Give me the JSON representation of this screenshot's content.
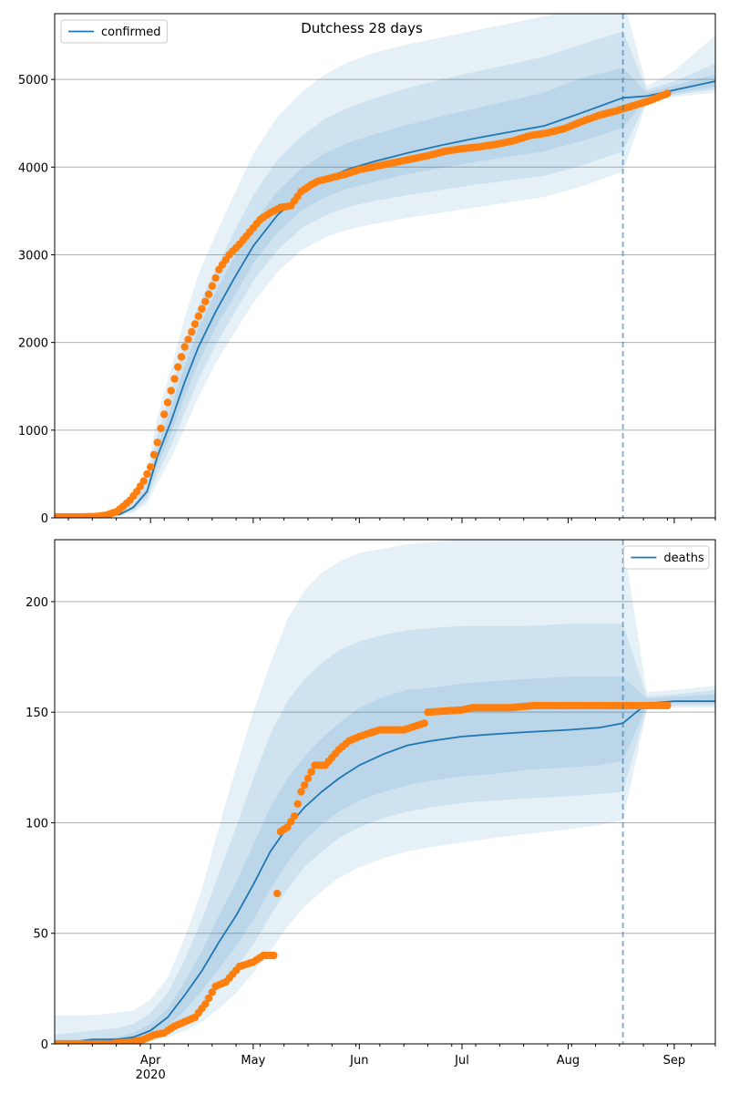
{
  "figure_title": "Dutchess 28 days",
  "colors": {
    "model": "#1f77b4",
    "observed": "#ff7f0e",
    "grid": "#b0b0b0",
    "axis": "#000000"
  },
  "chart_data": [
    {
      "type": "line",
      "name": "confirmed-panel",
      "legend": {
        "label": "confirmed",
        "placement": "top-left"
      },
      "x_type": "date",
      "xlim": [
        "2020-03-04",
        "2020-09-13"
      ],
      "ylim": [
        0,
        5750
      ],
      "yticks": [
        0,
        1000,
        2000,
        3000,
        4000,
        5000
      ],
      "forecast_start": "2020-08-17",
      "model": {
        "dates": [
          "2020-03-04",
          "2020-03-11",
          "2020-03-18",
          "2020-03-23",
          "2020-03-27",
          "2020-03-31",
          "2020-04-03",
          "2020-04-07",
          "2020-04-11",
          "2020-04-15",
          "2020-04-20",
          "2020-04-25",
          "2020-05-01",
          "2020-05-08",
          "2020-05-15",
          "2020-05-22",
          "2020-05-29",
          "2020-06-05",
          "2020-06-15",
          "2020-06-25",
          "2020-07-05",
          "2020-07-15",
          "2020-07-25",
          "2020-08-05",
          "2020-08-17",
          "2020-08-24",
          "2020-09-01",
          "2020-09-13"
        ],
        "median": [
          10,
          12,
          15,
          40,
          120,
          300,
          700,
          1100,
          1550,
          1950,
          2350,
          2700,
          3100,
          3450,
          3700,
          3870,
          3980,
          4060,
          4160,
          4250,
          4330,
          4400,
          4470,
          4620,
          4790,
          4810,
          4880,
          4980
        ],
        "band_50": [
          [
            10,
            10
          ],
          [
            12,
            12
          ],
          [
            15,
            15
          ],
          [
            35,
            45
          ],
          [
            100,
            140
          ],
          [
            260,
            340
          ],
          [
            600,
            800
          ],
          [
            960,
            1250
          ],
          [
            1380,
            1730
          ],
          [
            1770,
            2160
          ],
          [
            2170,
            2570
          ],
          [
            2500,
            2940
          ],
          [
            2900,
            3360
          ],
          [
            3250,
            3720
          ],
          [
            3500,
            3980
          ],
          [
            3660,
            4160
          ],
          [
            3760,
            4280
          ],
          [
            3830,
            4370
          ],
          [
            3920,
            4480
          ],
          [
            3990,
            4580
          ],
          [
            4060,
            4670
          ],
          [
            4120,
            4760
          ],
          [
            4180,
            4850
          ],
          [
            4300,
            5020
          ],
          [
            4450,
            5130
          ],
          [
            4780,
            4850
          ],
          [
            4840,
            4930
          ],
          [
            4920,
            5060
          ]
        ],
        "band_80": [
          [
            10,
            10
          ],
          [
            12,
            12
          ],
          [
            15,
            15
          ],
          [
            30,
            55
          ],
          [
            80,
            170
          ],
          [
            210,
            410
          ],
          [
            500,
            950
          ],
          [
            820,
            1450
          ],
          [
            1200,
            1970
          ],
          [
            1580,
            2420
          ],
          [
            1970,
            2830
          ],
          [
            2300,
            3230
          ],
          [
            2700,
            3680
          ],
          [
            3050,
            4080
          ],
          [
            3300,
            4350
          ],
          [
            3450,
            4550
          ],
          [
            3550,
            4680
          ],
          [
            3610,
            4780
          ],
          [
            3680,
            4900
          ],
          [
            3740,
            5000
          ],
          [
            3800,
            5090
          ],
          [
            3850,
            5170
          ],
          [
            3900,
            5260
          ],
          [
            4020,
            5400
          ],
          [
            4180,
            5550
          ],
          [
            4760,
            4880
          ],
          [
            4820,
            4980
          ],
          [
            4890,
            5180
          ]
        ],
        "band_95": [
          [
            10,
            10
          ],
          [
            12,
            12
          ],
          [
            15,
            15
          ],
          [
            25,
            70
          ],
          [
            60,
            220
          ],
          [
            160,
            520
          ],
          [
            400,
            1150
          ],
          [
            680,
            1700
          ],
          [
            1020,
            2280
          ],
          [
            1380,
            2780
          ],
          [
            1760,
            3230
          ],
          [
            2080,
            3650
          ],
          [
            2450,
            4150
          ],
          [
            2800,
            4570
          ],
          [
            3050,
            4850
          ],
          [
            3200,
            5060
          ],
          [
            3290,
            5200
          ],
          [
            3350,
            5300
          ],
          [
            3420,
            5400
          ],
          [
            3480,
            5480
          ],
          [
            3540,
            5560
          ],
          [
            3600,
            5640
          ],
          [
            3660,
            5720
          ],
          [
            3780,
            5820
          ],
          [
            3950,
            5930
          ],
          [
            4740,
            4920
          ],
          [
            4800,
            5100
          ],
          [
            4850,
            5500
          ]
        ]
      },
      "observed": {
        "dates": [
          "2020-03-04",
          "2020-03-11",
          "2020-03-16",
          "2020-03-19",
          "2020-03-22",
          "2020-03-24",
          "2020-03-26",
          "2020-03-28",
          "2020-03-30",
          "2020-04-01",
          "2020-04-03",
          "2020-04-05",
          "2020-04-07",
          "2020-04-09",
          "2020-04-11",
          "2020-04-13",
          "2020-04-15",
          "2020-04-18",
          "2020-04-21",
          "2020-04-24",
          "2020-04-27",
          "2020-04-30",
          "2020-05-03",
          "2020-05-06",
          "2020-05-09",
          "2020-05-12",
          "2020-05-15",
          "2020-05-18",
          "2020-05-20",
          "2020-05-24",
          "2020-05-28",
          "2020-06-01",
          "2020-06-06",
          "2020-06-11",
          "2020-06-16",
          "2020-06-21",
          "2020-06-26",
          "2020-07-01",
          "2020-07-06",
          "2020-07-11",
          "2020-07-16",
          "2020-07-21",
          "2020-07-26",
          "2020-07-31",
          "2020-08-05",
          "2020-08-10",
          "2020-08-15",
          "2020-08-20",
          "2020-08-25",
          "2020-08-30"
        ],
        "values": [
          10,
          10,
          15,
          30,
          70,
          130,
          200,
          300,
          420,
          580,
          860,
          1180,
          1450,
          1720,
          1950,
          2120,
          2300,
          2550,
          2830,
          3000,
          3120,
          3260,
          3400,
          3480,
          3540,
          3560,
          3720,
          3800,
          3840,
          3880,
          3920,
          3970,
          4010,
          4050,
          4090,
          4130,
          4180,
          4210,
          4230,
          4260,
          4300,
          4360,
          4390,
          4440,
          4520,
          4590,
          4640,
          4700,
          4760,
          4840
        ]
      }
    },
    {
      "type": "line",
      "name": "deaths-panel",
      "legend": {
        "label": "deaths",
        "placement": "top-right"
      },
      "x_type": "date",
      "x_tick_labels": [
        "Apr",
        "May",
        "Jun",
        "Jul",
        "Aug",
        "Sep"
      ],
      "x_tick_dates": [
        "2020-04-01",
        "2020-05-01",
        "2020-06-01",
        "2020-07-01",
        "2020-08-01",
        "2020-09-01"
      ],
      "year_label": "2020",
      "xlim": [
        "2020-03-04",
        "2020-09-13"
      ],
      "ylim": [
        0,
        228
      ],
      "yticks": [
        0,
        50,
        100,
        150,
        200
      ],
      "forecast_start": "2020-08-17",
      "model": {
        "dates": [
          "2020-03-04",
          "2020-03-15",
          "2020-03-22",
          "2020-03-27",
          "2020-04-01",
          "2020-04-06",
          "2020-04-11",
          "2020-04-16",
          "2020-04-21",
          "2020-04-26",
          "2020-05-01",
          "2020-05-06",
          "2020-05-11",
          "2020-05-16",
          "2020-05-21",
          "2020-05-26",
          "2020-06-01",
          "2020-06-08",
          "2020-06-15",
          "2020-06-22",
          "2020-07-01",
          "2020-07-10",
          "2020-07-20",
          "2020-08-01",
          "2020-08-10",
          "2020-08-17",
          "2020-08-24",
          "2020-09-01",
          "2020-09-13"
        ],
        "median": [
          0,
          2,
          2,
          3,
          6,
          12,
          22,
          33,
          46,
          58,
          72,
          87,
          98,
          107,
          114,
          120,
          126,
          131,
          135,
          137,
          139,
          140,
          141,
          142,
          143,
          145,
          154,
          155,
          155
        ],
        "band_50": [
          [
            0,
            1
          ],
          [
            1,
            2
          ],
          [
            1,
            3
          ],
          [
            2,
            5
          ],
          [
            4,
            9
          ],
          [
            8,
            16
          ],
          [
            15,
            28
          ],
          [
            24,
            42
          ],
          [
            34,
            58
          ],
          [
            44,
            73
          ],
          [
            56,
            90
          ],
          [
            70,
            107
          ],
          [
            82,
            120
          ],
          [
            92,
            130
          ],
          [
            99,
            138
          ],
          [
            105,
            145
          ],
          [
            110,
            152
          ],
          [
            114,
            157
          ],
          [
            117,
            160
          ],
          [
            119,
            161
          ],
          [
            121,
            163
          ],
          [
            122,
            164
          ],
          [
            124,
            165
          ],
          [
            125,
            166
          ],
          [
            126,
            166
          ],
          [
            128,
            166
          ],
          [
            153,
            156
          ],
          [
            154,
            157
          ],
          [
            154,
            158
          ]
        ],
        "band_80": [
          [
            0,
            4
          ],
          [
            0,
            6
          ],
          [
            0,
            7
          ],
          [
            1,
            9
          ],
          [
            2,
            14
          ],
          [
            5,
            23
          ],
          [
            10,
            38
          ],
          [
            17,
            56
          ],
          [
            25,
            77
          ],
          [
            34,
            98
          ],
          [
            45,
            120
          ],
          [
            58,
            140
          ],
          [
            70,
            155
          ],
          [
            80,
            165
          ],
          [
            87,
            172
          ],
          [
            93,
            178
          ],
          [
            98,
            182
          ],
          [
            102,
            185
          ],
          [
            105,
            187
          ],
          [
            107,
            188
          ],
          [
            109,
            189
          ],
          [
            110,
            189
          ],
          [
            111,
            189
          ],
          [
            112,
            190
          ],
          [
            113,
            190
          ],
          [
            114,
            190
          ],
          [
            152,
            157
          ],
          [
            153,
            158
          ],
          [
            153,
            160
          ]
        ],
        "band_95": [
          [
            0,
            13
          ],
          [
            0,
            13
          ],
          [
            0,
            14
          ],
          [
            0,
            15
          ],
          [
            1,
            20
          ],
          [
            3,
            30
          ],
          [
            6,
            48
          ],
          [
            10,
            70
          ],
          [
            16,
            98
          ],
          [
            23,
            125
          ],
          [
            32,
            150
          ],
          [
            42,
            172
          ],
          [
            53,
            192
          ],
          [
            62,
            205
          ],
          [
            69,
            213
          ],
          [
            75,
            218
          ],
          [
            80,
            222
          ],
          [
            84,
            224
          ],
          [
            87,
            226
          ],
          [
            89,
            227
          ],
          [
            91,
            228
          ],
          [
            93,
            228
          ],
          [
            95,
            228
          ],
          [
            97,
            228
          ],
          [
            99,
            228
          ],
          [
            101,
            228
          ],
          [
            151,
            159
          ],
          [
            152,
            160
          ],
          [
            152,
            162
          ]
        ]
      },
      "observed": {
        "dates": [
          "2020-03-04",
          "2020-03-12",
          "2020-03-20",
          "2020-03-27",
          "2020-03-30",
          "2020-04-02",
          "2020-04-05",
          "2020-04-08",
          "2020-04-11",
          "2020-04-14",
          "2020-04-17",
          "2020-04-20",
          "2020-04-23",
          "2020-04-27",
          "2020-05-01",
          "2020-05-04",
          "2020-05-07",
          "2020-05-09",
          "2020-05-11",
          "2020-05-13",
          "2020-05-15",
          "2020-05-17",
          "2020-05-19",
          "2020-05-22",
          "2020-05-26",
          "2020-05-29",
          "2020-06-01",
          "2020-06-07",
          "2020-06-14",
          "2020-06-20",
          "2020-06-21",
          "2020-07-01",
          "2020-07-04",
          "2020-07-15",
          "2020-07-22",
          "2020-08-01",
          "2020-08-10",
          "2020-08-20",
          "2020-08-30"
        ],
        "values": [
          0,
          0,
          0,
          1,
          2,
          4,
          5,
          8,
          10,
          12,
          18,
          26,
          28,
          35,
          37,
          40,
          40,
          96,
          98,
          103,
          114,
          120,
          126,
          126,
          133,
          137,
          139,
          142,
          142,
          145,
          150,
          151,
          152,
          152,
          153,
          153,
          153,
          153,
          153
        ]
      }
    }
  ]
}
